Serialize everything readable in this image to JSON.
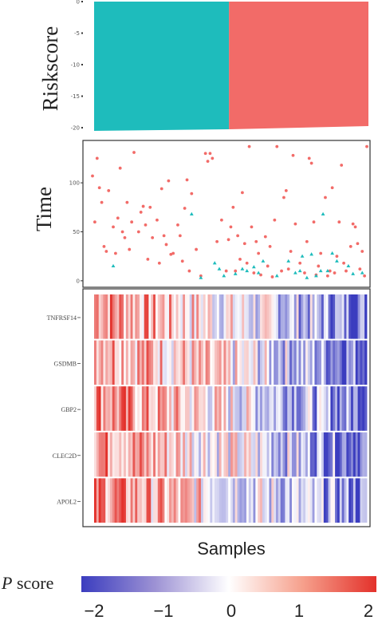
{
  "chart_data": [
    {
      "type": "area",
      "panel": "riskscore",
      "ylabel": "Riskscore",
      "yticks": [
        0,
        -5,
        -10,
        -15,
        -20
      ],
      "ylim": [
        -20.5,
        0
      ],
      "n_samples": 120,
      "low_risk_count": 59,
      "colors": {
        "low": "#1ebcbc",
        "high": "#f26b68"
      }
    },
    {
      "type": "scatter",
      "panel": "time",
      "ylabel": "Time",
      "yticks": [
        0,
        50,
        100
      ],
      "ylim": [
        -5,
        140
      ],
      "colors": {
        "alive": "#f26b68",
        "dead": "#1ebcbc"
      },
      "series": [
        {
          "status": "alive",
          "points": [
            [
              1,
              107
            ],
            [
              2,
              60
            ],
            [
              3,
              125
            ],
            [
              4,
              95
            ],
            [
              5,
              80
            ],
            [
              6,
              35
            ],
            [
              7,
              30
            ],
            [
              8,
              92
            ],
            [
              10,
              55
            ],
            [
              11,
              28
            ],
            [
              12,
              64
            ],
            [
              13,
              115
            ],
            [
              14,
              50
            ],
            [
              15,
              44
            ],
            [
              16,
              80
            ],
            [
              17,
              32
            ],
            [
              18,
              60
            ],
            [
              19,
              131
            ],
            [
              21,
              50
            ],
            [
              22,
              70
            ],
            [
              23,
              76
            ],
            [
              24,
              57
            ],
            [
              25,
              22
            ],
            [
              26,
              75
            ],
            [
              27,
              44
            ],
            [
              29,
              62
            ],
            [
              30,
              18
            ],
            [
              31,
              94
            ],
            [
              32,
              46
            ],
            [
              33,
              37
            ],
            [
              34,
              102
            ],
            [
              35,
              27
            ],
            [
              36,
              28
            ],
            [
              38,
              57
            ],
            [
              39,
              46
            ],
            [
              40,
              20
            ],
            [
              41,
              74
            ],
            [
              42,
              103
            ],
            [
              43,
              10
            ],
            [
              44,
              89
            ],
            [
              46,
              32
            ],
            [
              48,
              5
            ],
            [
              50,
              130
            ],
            [
              51,
              122
            ],
            [
              52,
              130
            ],
            [
              53,
              125
            ],
            [
              55,
              40
            ],
            [
              57,
              62
            ],
            [
              59,
              10
            ],
            [
              60,
              42
            ],
            [
              61,
              55
            ],
            [
              62,
              75
            ],
            [
              63,
              10
            ],
            [
              64,
              46
            ],
            [
              65,
              22
            ],
            [
              66,
              90
            ],
            [
              67,
              38
            ],
            [
              68,
              18
            ],
            [
              69,
              137
            ],
            [
              70,
              55
            ],
            [
              71,
              8
            ],
            [
              72,
              40
            ],
            [
              73,
              28
            ],
            [
              74,
              6
            ],
            [
              76,
              45
            ],
            [
              77,
              15
            ],
            [
              78,
              35
            ],
            [
              79,
              4
            ],
            [
              80,
              62
            ],
            [
              81,
              137
            ],
            [
              83,
              10
            ],
            [
              84,
              85
            ],
            [
              85,
              92
            ],
            [
              86,
              12
            ],
            [
              87,
              30
            ],
            [
              88,
              128
            ],
            [
              89,
              58
            ],
            [
              91,
              18
            ],
            [
              93,
              8
            ],
            [
              94,
              40
            ],
            [
              95,
              125
            ],
            [
              96,
              120
            ],
            [
              97,
              60
            ],
            [
              98,
              6
            ],
            [
              99,
              15
            ],
            [
              100,
              28
            ],
            [
              102,
              85
            ],
            [
              103,
              5
            ],
            [
              104,
              10
            ],
            [
              105,
              95
            ],
            [
              106,
              8
            ],
            [
              107,
              25
            ],
            [
              108,
              60
            ],
            [
              109,
              118
            ],
            [
              110,
              18
            ],
            [
              111,
              10
            ],
            [
              113,
              35
            ],
            [
              114,
              58
            ],
            [
              115,
              55
            ],
            [
              116,
              38
            ],
            [
              117,
              12
            ],
            [
              118,
              30
            ],
            [
              119,
              5
            ],
            [
              120,
              137
            ]
          ]
        },
        {
          "status": "dead",
          "points": [
            [
              10,
              15
            ],
            [
              44,
              68
            ],
            [
              48,
              3
            ],
            [
              54,
              18
            ],
            [
              56,
              12
            ],
            [
              58,
              5
            ],
            [
              63,
              7
            ],
            [
              66,
              12
            ],
            [
              68,
              10
            ],
            [
              71,
              14
            ],
            [
              73,
              8
            ],
            [
              75,
              20
            ],
            [
              81,
              5
            ],
            [
              86,
              20
            ],
            [
              89,
              8
            ],
            [
              91,
              10
            ],
            [
              92,
              25
            ],
            [
              94,
              3
            ],
            [
              96,
              27
            ],
            [
              98,
              5
            ],
            [
              100,
              10
            ],
            [
              101,
              68
            ],
            [
              103,
              10
            ],
            [
              105,
              28
            ],
            [
              107,
              20
            ],
            [
              112,
              15
            ],
            [
              114,
              7
            ],
            [
              118,
              8
            ]
          ]
        }
      ]
    },
    {
      "type": "heatmap",
      "panel": "expression",
      "genes": [
        "TNFRSF14",
        "GSDMB",
        "GBP2",
        "CLEC2D",
        "APOL2"
      ],
      "xlabel": "Samples",
      "n_samples": 120,
      "value_range": [
        -2,
        2
      ],
      "colors": {
        "low": "#3b3dbf",
        "mid": "#ffffff",
        "high": "#e3312b"
      },
      "pattern_note": "values generally decrease from left (red) to right (blue)"
    }
  ],
  "legend": {
    "title_italic": "P",
    "title_rest": " score",
    "ticks": [
      "−2",
      "−1",
      "0",
      "1",
      "2"
    ]
  }
}
